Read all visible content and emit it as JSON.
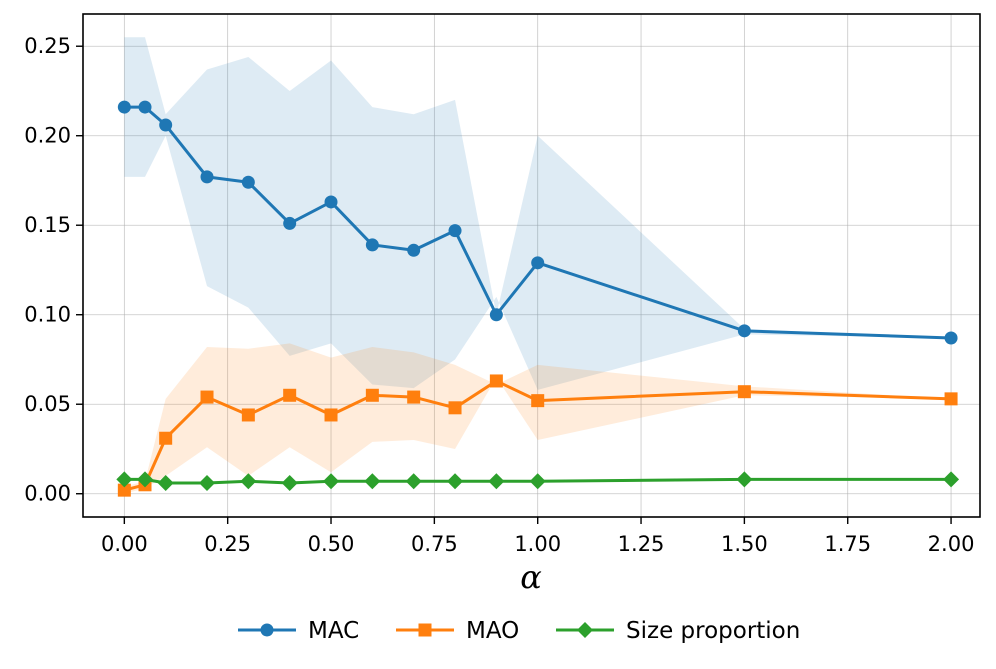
{
  "chart_data": {
    "type": "line",
    "title": "",
    "xlabel": "α",
    "ylabel": "",
    "xlim": [
      -0.1,
      2.07
    ],
    "ylim": [
      -0.013,
      0.268
    ],
    "grid": true,
    "legend_position": "bottom-center",
    "x": [
      0.0,
      0.05,
      0.1,
      0.2,
      0.3,
      0.4,
      0.5,
      0.6,
      0.7,
      0.8,
      0.9,
      1.0,
      1.5,
      2.0
    ],
    "xticks": [
      0.0,
      0.25,
      0.5,
      0.75,
      1.0,
      1.25,
      1.5,
      1.75,
      2.0
    ],
    "xtick_labels": [
      "0.00",
      "0.25",
      "0.50",
      "0.75",
      "1.00",
      "1.25",
      "1.50",
      "1.75",
      "2.00"
    ],
    "yticks": [
      0.0,
      0.05,
      0.1,
      0.15,
      0.2,
      0.25
    ],
    "ytick_labels": [
      "0.00",
      "0.05",
      "0.10",
      "0.15",
      "0.20",
      "0.25"
    ],
    "series": [
      {
        "name": "MAC",
        "color": "#1f77b4",
        "marker": "circle",
        "values": [
          0.216,
          0.216,
          0.206,
          0.177,
          0.174,
          0.151,
          0.163,
          0.139,
          0.136,
          0.147,
          0.1,
          0.129,
          0.091,
          0.087
        ],
        "band_lower": [
          0.177,
          0.177,
          0.2,
          0.116,
          0.104,
          0.077,
          0.084,
          0.061,
          0.059,
          0.075,
          0.11,
          0.058,
          0.089,
          0.087
        ],
        "band_upper": [
          0.255,
          0.255,
          0.212,
          0.237,
          0.244,
          0.225,
          0.242,
          0.216,
          0.212,
          0.22,
          0.1,
          0.2,
          0.092,
          0.087
        ]
      },
      {
        "name": "MAO",
        "color": "#ff7f0e",
        "marker": "square",
        "values": [
          0.002,
          0.005,
          0.031,
          0.054,
          0.044,
          0.055,
          0.044,
          0.055,
          0.054,
          0.048,
          0.063,
          0.052,
          0.057,
          0.053
        ],
        "band_lower": [
          0.0,
          0.003,
          0.01,
          0.026,
          0.01,
          0.026,
          0.012,
          0.029,
          0.03,
          0.025,
          0.065,
          0.03,
          0.055,
          0.053
        ],
        "band_upper": [
          0.004,
          0.007,
          0.053,
          0.082,
          0.081,
          0.084,
          0.076,
          0.082,
          0.079,
          0.072,
          0.061,
          0.072,
          0.06,
          0.053
        ]
      },
      {
        "name": "Size proportion",
        "color": "#2ca02c",
        "marker": "diamond",
        "values": [
          0.008,
          0.008,
          0.006,
          0.006,
          0.007,
          0.006,
          0.007,
          0.007,
          0.007,
          0.007,
          0.007,
          0.007,
          0.008,
          0.008
        ]
      }
    ]
  }
}
